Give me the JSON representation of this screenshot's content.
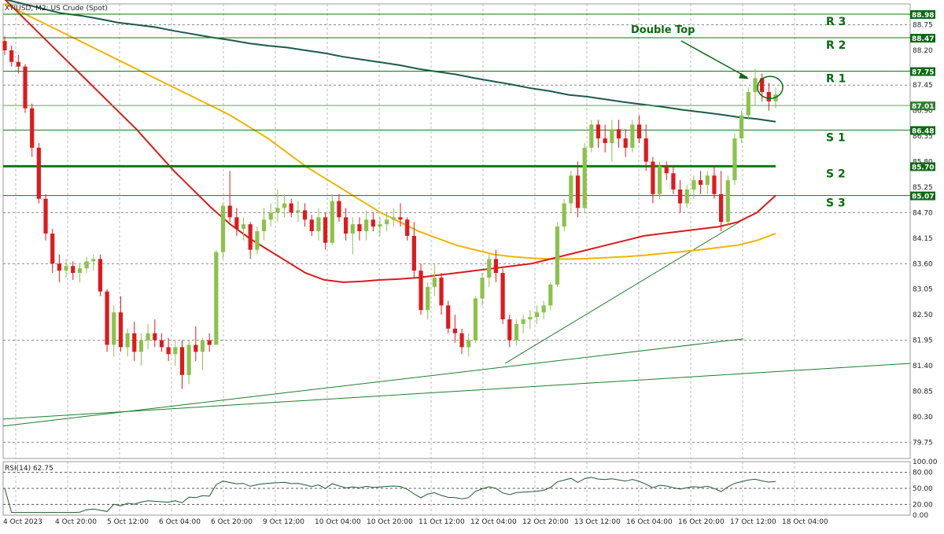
{
  "header": {
    "symbol_title": "XTIUSD, M2: US Crude (Spot)"
  },
  "rsi": {
    "label": "RSI(14) 62.75",
    "ticks": [
      "100.00",
      "80.00",
      "50.00",
      "20.00",
      "0.00"
    ],
    "levels": [
      80,
      50,
      20
    ]
  },
  "chart_data": {
    "type": "candlestick",
    "title": "XTIUSD, M2: US Crude (Spot)",
    "ylim": [
      79.4,
      89.2
    ],
    "y_ticks": [
      "88.75",
      "88.20",
      "87.75",
      "87.45",
      "86.90",
      "86.35",
      "85.80",
      "85.25",
      "84.70",
      "84.15",
      "83.60",
      "83.05",
      "82.50",
      "81.95",
      "81.40",
      "80.85",
      "80.30",
      "79.75"
    ],
    "x_ticks": [
      "4 Oct 2023",
      "4 Oct 20:00",
      "5 Oct 12:00",
      "6 Oct 04:00",
      "6 Oct 20:00",
      "9 Oct 12:00",
      "10 Oct 04:00",
      "10 Oct 20:00",
      "11 Oct 12:00",
      "12 Oct 04:00",
      "12 Oct 20:00",
      "13 Oct 12:00",
      "16 Oct 04:00",
      "16 Oct 20:00",
      "17 Oct 12:00",
      "18 Oct 04:00"
    ],
    "price_labels": [
      "88.98",
      "88.47",
      "87.75",
      "87.01",
      "86.48",
      "85.70",
      "85.07"
    ],
    "levels": [
      {
        "name": "R 3",
        "value": 88.98
      },
      {
        "name": "R 2",
        "value": 88.47
      },
      {
        "name": "R 1",
        "value": 87.75
      },
      {
        "name": "S 1",
        "value": 86.48
      },
      {
        "name": "S 2",
        "value": 85.7
      },
      {
        "name": "S 3",
        "value": 85.07
      }
    ],
    "current_price": 87.01,
    "annotation": "Double Top",
    "colors": {
      "bull": "#8bc34a",
      "bear": "#e0191c",
      "ma_fast": "#d81b1b",
      "ma_mid": "#f0b400",
      "ma_slow": "#1c5a4a",
      "level": "#0b7a16"
    },
    "candles_approx": [
      [
        88.4,
        88.5,
        88.1,
        88.2
      ],
      [
        88.2,
        88.3,
        87.85,
        87.95
      ],
      [
        87.95,
        88.1,
        87.7,
        87.85
      ],
      [
        87.85,
        87.9,
        86.85,
        86.95
      ],
      [
        86.95,
        87.05,
        85.9,
        86.1
      ],
      [
        86.1,
        86.2,
        84.9,
        85.0
      ],
      [
        85.0,
        85.1,
        84.1,
        84.25
      ],
      [
        84.25,
        84.35,
        83.4,
        83.6
      ],
      [
        83.6,
        83.8,
        83.2,
        83.45
      ],
      [
        83.45,
        83.7,
        83.3,
        83.55
      ],
      [
        83.55,
        83.65,
        83.25,
        83.4
      ],
      [
        83.4,
        83.6,
        83.2,
        83.5
      ],
      [
        83.5,
        83.75,
        83.4,
        83.65
      ],
      [
        83.65,
        83.8,
        83.45,
        83.7
      ],
      [
        83.7,
        83.8,
        82.9,
        83.0
      ],
      [
        83.0,
        83.05,
        81.7,
        81.85
      ],
      [
        81.85,
        82.7,
        81.6,
        82.55
      ],
      [
        82.55,
        82.9,
        81.7,
        81.8
      ],
      [
        81.8,
        82.2,
        81.6,
        82.1
      ],
      [
        82.1,
        82.35,
        81.5,
        81.7
      ],
      [
        81.7,
        82.1,
        81.4,
        81.95
      ],
      [
        81.95,
        82.3,
        81.75,
        82.1
      ],
      [
        82.1,
        82.4,
        81.8,
        81.95
      ],
      [
        81.95,
        82.1,
        81.7,
        81.8
      ],
      [
        81.8,
        82.0,
        81.5,
        81.65
      ],
      [
        81.65,
        81.95,
        81.4,
        81.8
      ],
      [
        81.8,
        81.95,
        80.9,
        81.2
      ],
      [
        81.2,
        81.95,
        81.0,
        81.85
      ],
      [
        81.85,
        82.25,
        81.5,
        81.7
      ],
      [
        81.7,
        82.0,
        81.3,
        81.95
      ],
      [
        81.95,
        82.1,
        81.7,
        81.85
      ],
      [
        81.85,
        83.9,
        81.9,
        83.85
      ],
      [
        83.85,
        84.9,
        83.7,
        84.85
      ],
      [
        84.85,
        85.6,
        84.5,
        84.6
      ],
      [
        84.6,
        84.8,
        84.2,
        84.35
      ],
      [
        84.35,
        84.6,
        84.1,
        84.45
      ],
      [
        84.45,
        84.5,
        83.7,
        83.9
      ],
      [
        83.9,
        84.4,
        83.8,
        84.3
      ],
      [
        84.3,
        84.8,
        84.1,
        84.55
      ],
      [
        84.55,
        84.9,
        84.4,
        84.7
      ],
      [
        84.7,
        85.2,
        84.5,
        84.8
      ],
      [
        84.8,
        85.1,
        84.6,
        84.9
      ],
      [
        84.9,
        85.0,
        84.6,
        84.7
      ],
      [
        84.7,
        84.95,
        84.5,
        84.75
      ],
      [
        84.75,
        84.9,
        84.4,
        84.55
      ],
      [
        84.55,
        84.65,
        84.2,
        84.3
      ],
      [
        84.3,
        84.8,
        84.1,
        84.6
      ],
      [
        84.6,
        84.7,
        83.9,
        84.05
      ],
      [
        84.05,
        85.1,
        84.0,
        84.95
      ],
      [
        84.95,
        85.1,
        84.5,
        84.6
      ],
      [
        84.6,
        84.8,
        84.1,
        84.25
      ],
      [
        84.25,
        84.6,
        83.8,
        84.45
      ],
      [
        84.45,
        84.6,
        84.1,
        84.3
      ],
      [
        84.3,
        84.75,
        84.1,
        84.55
      ],
      [
        84.55,
        84.7,
        84.3,
        84.4
      ],
      [
        84.4,
        84.6,
        84.2,
        84.45
      ],
      [
        84.45,
        84.7,
        84.3,
        84.55
      ],
      [
        84.55,
        84.8,
        84.4,
        84.6
      ],
      [
        84.6,
        84.9,
        84.4,
        84.55
      ],
      [
        84.55,
        84.6,
        84.1,
        84.2
      ],
      [
        84.2,
        84.5,
        83.3,
        83.45
      ],
      [
        83.45,
        83.6,
        82.5,
        82.6
      ],
      [
        82.6,
        83.2,
        82.4,
        83.1
      ],
      [
        83.1,
        83.6,
        82.9,
        83.3
      ],
      [
        83.3,
        83.4,
        82.5,
        82.7
      ],
      [
        82.7,
        82.8,
        82.1,
        82.2
      ],
      [
        82.2,
        82.5,
        81.9,
        82.1
      ],
      [
        82.1,
        82.2,
        81.65,
        81.8
      ],
      [
        81.8,
        82.1,
        81.6,
        81.95
      ],
      [
        81.95,
        82.9,
        81.9,
        82.85
      ],
      [
        82.85,
        83.4,
        82.7,
        83.3
      ],
      [
        83.3,
        83.8,
        83.1,
        83.7
      ],
      [
        83.7,
        83.9,
        83.2,
        83.4
      ],
      [
        83.4,
        83.5,
        82.3,
        82.4
      ],
      [
        82.4,
        82.5,
        81.8,
        81.95
      ],
      [
        81.95,
        82.4,
        81.85,
        82.3
      ],
      [
        82.3,
        82.5,
        82.1,
        82.4
      ],
      [
        82.4,
        82.6,
        82.2,
        82.45
      ],
      [
        82.45,
        82.7,
        82.3,
        82.55
      ],
      [
        82.55,
        82.8,
        82.4,
        82.7
      ],
      [
        82.7,
        83.2,
        82.6,
        83.15
      ],
      [
        83.15,
        84.5,
        83.1,
        84.4
      ],
      [
        84.4,
        85.0,
        84.3,
        84.9
      ],
      [
        84.9,
        85.6,
        84.7,
        85.5
      ],
      [
        85.5,
        85.8,
        84.6,
        84.8
      ],
      [
        84.8,
        86.2,
        84.7,
        86.1
      ],
      [
        86.1,
        86.7,
        86.0,
        86.6
      ],
      [
        86.6,
        86.7,
        86.1,
        86.3
      ],
      [
        86.3,
        86.6,
        86.0,
        86.2
      ],
      [
        86.2,
        86.7,
        85.8,
        86.5
      ],
      [
        86.5,
        86.7,
        86.1,
        86.3
      ],
      [
        86.3,
        86.5,
        85.9,
        86.1
      ],
      [
        86.1,
        86.7,
        86.0,
        86.6
      ],
      [
        86.6,
        86.8,
        86.2,
        86.3
      ],
      [
        86.3,
        86.6,
        85.6,
        85.8
      ],
      [
        85.8,
        85.9,
        84.9,
        85.1
      ],
      [
        85.1,
        85.8,
        85.0,
        85.7
      ],
      [
        85.7,
        85.8,
        85.4,
        85.55
      ],
      [
        85.55,
        85.7,
        85.1,
        85.2
      ],
      [
        85.2,
        85.4,
        84.7,
        84.9
      ],
      [
        84.9,
        85.3,
        84.8,
        85.2
      ],
      [
        85.2,
        85.5,
        85.0,
        85.4
      ],
      [
        85.4,
        85.6,
        85.1,
        85.3
      ],
      [
        85.3,
        85.6,
        85.1,
        85.5
      ],
      [
        85.5,
        85.7,
        85.0,
        85.1
      ],
      [
        85.1,
        85.6,
        84.3,
        84.5
      ],
      [
        84.5,
        85.5,
        84.4,
        85.4
      ],
      [
        85.4,
        86.4,
        85.3,
        86.3
      ],
      [
        86.3,
        86.9,
        86.2,
        86.8
      ],
      [
        86.8,
        87.4,
        86.7,
        87.3
      ],
      [
        87.3,
        87.8,
        87.0,
        87.6
      ],
      [
        87.6,
        87.7,
        87.1,
        87.3
      ],
      [
        87.3,
        87.5,
        86.9,
        87.1
      ],
      [
        87.1,
        87.4,
        86.95,
        87.25
      ]
    ],
    "series": [
      {
        "values_approx": [
          89.3,
          89.2,
          89.1,
          89.0,
          88.95,
          88.88,
          88.8,
          88.75,
          88.7,
          88.62,
          88.55,
          88.48,
          88.42,
          88.35,
          88.3,
          88.26,
          88.2,
          88.14,
          88.06,
          88.0,
          87.94,
          87.88,
          87.8,
          87.74,
          87.68,
          87.6,
          87.53,
          87.46,
          87.38,
          87.32,
          87.24,
          87.2,
          87.14,
          87.08,
          87.03,
          86.98,
          86.92,
          86.87,
          86.82,
          86.76,
          86.72,
          86.66
        ]
      },
      {
        "values_approx": [
          89.2,
          89.0,
          88.8,
          88.6,
          88.4,
          88.2,
          88.0,
          87.8,
          87.6,
          87.4,
          87.2,
          87.0,
          86.8,
          86.55,
          86.3,
          86.0,
          85.7,
          85.45,
          85.2,
          84.95,
          84.7,
          84.5,
          84.3,
          84.15,
          84.0,
          83.9,
          83.8,
          83.75,
          83.72,
          83.7,
          83.7,
          83.71,
          83.73,
          83.75,
          83.78,
          83.82,
          83.86,
          83.9,
          83.95,
          84.0,
          84.1,
          84.25
        ]
      },
      {
        "values_approx": [
          89.3,
          88.9,
          88.5,
          88.1,
          87.7,
          87.3,
          86.9,
          86.5,
          86.05,
          85.6,
          85.2,
          84.8,
          84.45,
          84.15,
          83.9,
          83.65,
          83.4,
          83.25,
          83.2,
          83.22,
          83.25,
          83.27,
          83.3,
          83.35,
          83.4,
          83.45,
          83.5,
          83.55,
          83.6,
          83.7,
          83.8,
          83.9,
          84.0,
          84.1,
          84.2,
          84.25,
          84.3,
          84.35,
          84.4,
          84.5,
          84.7,
          85.07
        ]
      }
    ]
  }
}
